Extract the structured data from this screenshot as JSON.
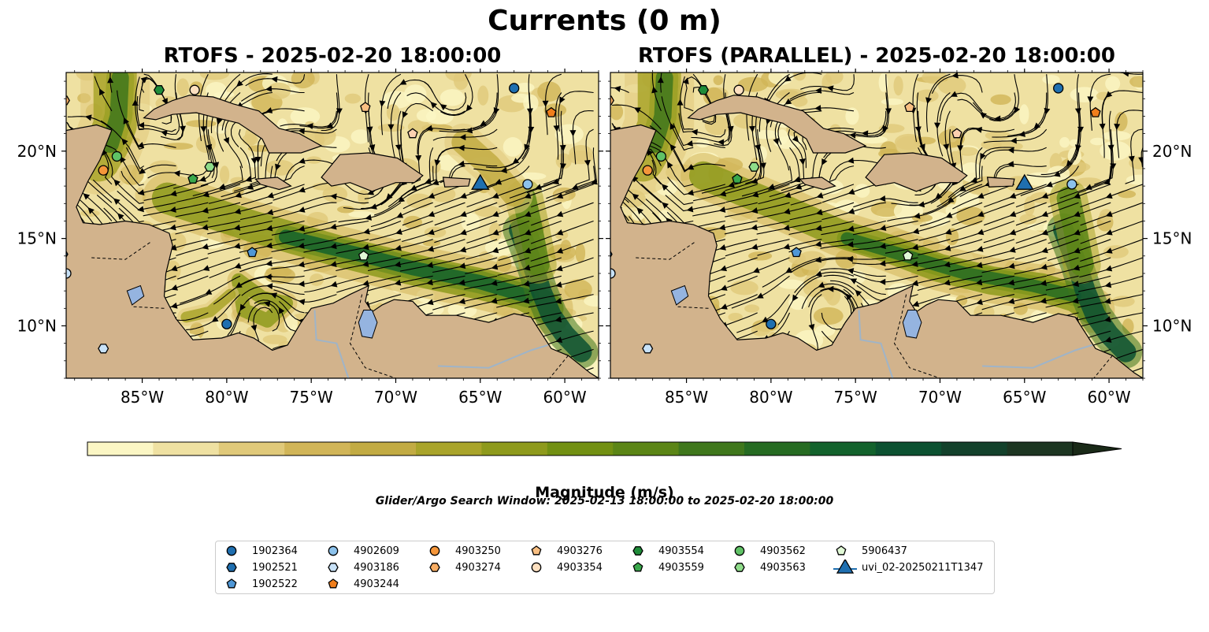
{
  "figure": {
    "suptitle": "Currents (0 m)",
    "panels": [
      {
        "title": "RTOFS - 2025-02-20 18:00:00"
      },
      {
        "title": "RTOFS (PARALLEL) - 2025-02-20 18:00:00"
      }
    ],
    "colorbar": {
      "label": "Magnitude (m/s)",
      "ticks": [
        "0.0",
        "0.2",
        "0.4",
        "0.6",
        "0.8",
        "1.0",
        "1.2",
        "1.4"
      ]
    },
    "search_window_note": "Glider/Argo Search Window: 2025-02-13 18:00:00 to 2025-02-20 18:00:00"
  },
  "chart_data": {
    "type": "map",
    "variable": "surface current magnitude with streamlines",
    "depth_m": 0,
    "lon_range": [
      -89.5,
      -58
    ],
    "lat_range": [
      7,
      24.5
    ],
    "lon_ticks": [
      -85,
      -80,
      -75,
      -70,
      -65,
      -60
    ],
    "lon_tick_labels": [
      "85°W",
      "80°W",
      "75°W",
      "70°W",
      "65°W",
      "60°W"
    ],
    "lat_ticks": [
      10,
      15,
      20
    ],
    "lat_tick_labels": [
      "10°N",
      "15°N",
      "20°N"
    ],
    "colorbar": {
      "min": 0.0,
      "max": 1.5,
      "step": 0.1,
      "extend": "max",
      "colors": [
        "#fbf6c4",
        "#efe1a2",
        "#e0c97a",
        "#d1b558",
        "#c2ab43",
        "#a9a42a",
        "#8e9a1c",
        "#729012",
        "#5b8516",
        "#3f771c",
        "#266b22",
        "#13622c",
        "#0c5131",
        "#13412b",
        "#1d3622",
        "#1a2a18"
      ]
    },
    "markers": [
      {
        "id": "1902364",
        "lon": -63.0,
        "lat": 23.6,
        "shape": "circle",
        "color": "#1f6fb0"
      },
      {
        "id": "1902521",
        "lon": -89.7,
        "lat": 14.1,
        "shape": "hexagon",
        "color": "#1f6fb0"
      },
      {
        "id": "1902522",
        "lon": -78.5,
        "lat": 14.2,
        "shape": "pentagon",
        "color": "#4f97d6"
      },
      {
        "id": "4902609",
        "lon": -62.2,
        "lat": 18.1,
        "shape": "circle",
        "color": "#8cc2ec"
      },
      {
        "id": "4903186",
        "lon": -87.3,
        "lat": 8.7,
        "shape": "hexagon",
        "color": "#c8e2f8"
      },
      {
        "id": "4903244",
        "lon": -60.8,
        "lat": 22.2,
        "shape": "pentagon",
        "color": "#f07e1c"
      },
      {
        "id": "4903250",
        "lon": -87.3,
        "lat": 18.9,
        "shape": "circle",
        "color": "#f5963a"
      },
      {
        "id": "4903274",
        "lon": -89.6,
        "lat": 22.9,
        "shape": "hexagon",
        "color": "#f8ad63"
      },
      {
        "id": "4903276",
        "lon": -71.8,
        "lat": 22.5,
        "shape": "pentagon",
        "color": "#f9bf82"
      },
      {
        "id": "4903354",
        "lon": -81.9,
        "lat": 23.5,
        "shape": "circle",
        "color": "#fde0c0"
      },
      {
        "id": "4903554",
        "lon": -84.0,
        "lat": 23.5,
        "shape": "hexagon",
        "color": "#1f8c39"
      },
      {
        "id": "4903559",
        "lon": -82.0,
        "lat": 18.4,
        "shape": "pentagon",
        "color": "#3aa84c"
      },
      {
        "id": "4903562",
        "lon": -86.5,
        "lat": 19.7,
        "shape": "circle",
        "color": "#60c266"
      },
      {
        "id": "4903563",
        "lon": -81.0,
        "lat": 19.1,
        "shape": "hexagon",
        "color": "#8fdc8a"
      },
      {
        "id": "4903569",
        "lon": -69.0,
        "lat": 21.0,
        "shape": "pentagon",
        "color": "#fbd0b0"
      },
      {
        "id": "4903570",
        "lon": -89.5,
        "lat": 13.0,
        "shape": "circle",
        "color": "#c8e2f8"
      },
      {
        "id": "4903572",
        "lon": -80.0,
        "lat": 10.1,
        "shape": "circle",
        "color": "#1f6fb0"
      },
      {
        "id": "5906437",
        "lon": -71.9,
        "lat": 14.0,
        "shape": "pentagon",
        "color": "#e1f9d6"
      },
      {
        "id": "uvi_02-20250211T1347",
        "lon": -65.0,
        "lat": 18.2,
        "shape": "triangle",
        "color": "#1f6fb0"
      }
    ]
  },
  "legend": {
    "items": [
      {
        "label": "1902364",
        "shape": "circle",
        "color": "#1f6fb0"
      },
      {
        "label": "1902521",
        "shape": "hexagon",
        "color": "#1f6fb0"
      },
      {
        "label": "1902522",
        "shape": "pentagon",
        "color": "#4f97d6"
      },
      {
        "label": "4902609",
        "shape": "circle",
        "color": "#8cc2ec"
      },
      {
        "label": "4903186",
        "shape": "hexagon",
        "color": "#c8e2f8"
      },
      {
        "label": "4903244",
        "shape": "pentagon",
        "color": "#f07e1c"
      },
      {
        "label": "4903250",
        "shape": "circle",
        "color": "#f5963a"
      },
      {
        "label": "4903274",
        "shape": "hexagon",
        "color": "#f8ad63"
      },
      {
        "label": "4903276",
        "shape": "pentagon",
        "color": "#f9bf82"
      },
      {
        "label": "4903354",
        "shape": "circle",
        "color": "#fde0c0"
      },
      {
        "label": "4903554",
        "shape": "hexagon",
        "color": "#1f8c39"
      },
      {
        "label": "4903559",
        "shape": "pentagon",
        "color": "#3aa84c"
      },
      {
        "label": "4903562",
        "shape": "circle",
        "color": "#60c266"
      },
      {
        "label": "4903563",
        "shape": "hexagon",
        "color": "#8fdc8a"
      },
      {
        "label": "5906437",
        "shape": "pentagon",
        "color": "#e1f9d6"
      },
      {
        "label": "uvi_02-20250211T1347",
        "shape": "triangle",
        "color": "#1f6fb0"
      }
    ]
  }
}
